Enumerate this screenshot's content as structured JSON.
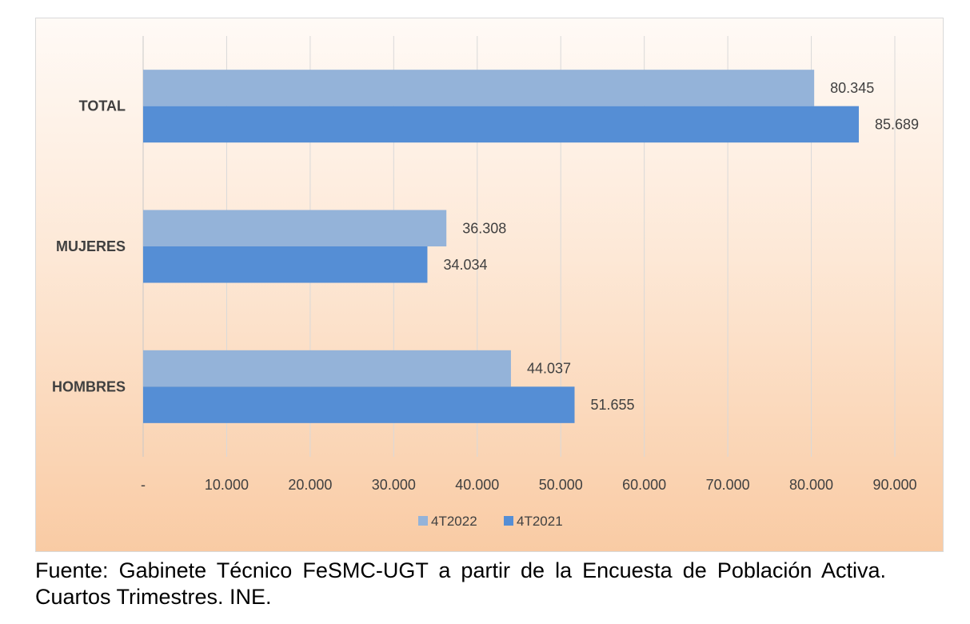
{
  "chart_data": {
    "type": "bar",
    "orientation": "horizontal",
    "categories": [
      "TOTAL",
      "MUJERES",
      "HOMBRES"
    ],
    "series": [
      {
        "name": "4T2022",
        "color": "#94b3d9",
        "values": [
          80345,
          36308,
          44037
        ],
        "labels": [
          "80.345",
          "36.308",
          "44.037"
        ]
      },
      {
        "name": "4T2021",
        "color": "#558ed5",
        "values": [
          85689,
          34034,
          51655
        ],
        "labels": [
          "85.689",
          "34.034",
          "51.655"
        ]
      }
    ],
    "xlim": [
      0,
      90000
    ],
    "x_ticks": [
      0,
      10000,
      20000,
      30000,
      40000,
      50000,
      60000,
      70000,
      80000,
      90000
    ],
    "x_tick_labels": [
      "-",
      "10.000",
      "20.000",
      "30.000",
      "40.000",
      "50.000",
      "60.000",
      "70.000",
      "80.000",
      "90.000"
    ],
    "grid": true,
    "legend_position": "bottom",
    "title": "",
    "xlabel": "",
    "ylabel": ""
  },
  "caption": "Fuente: Gabinete Técnico FeSMC-UGT a partir de la Encuesta de Población Activa. Cuartos Trimestres. INE."
}
